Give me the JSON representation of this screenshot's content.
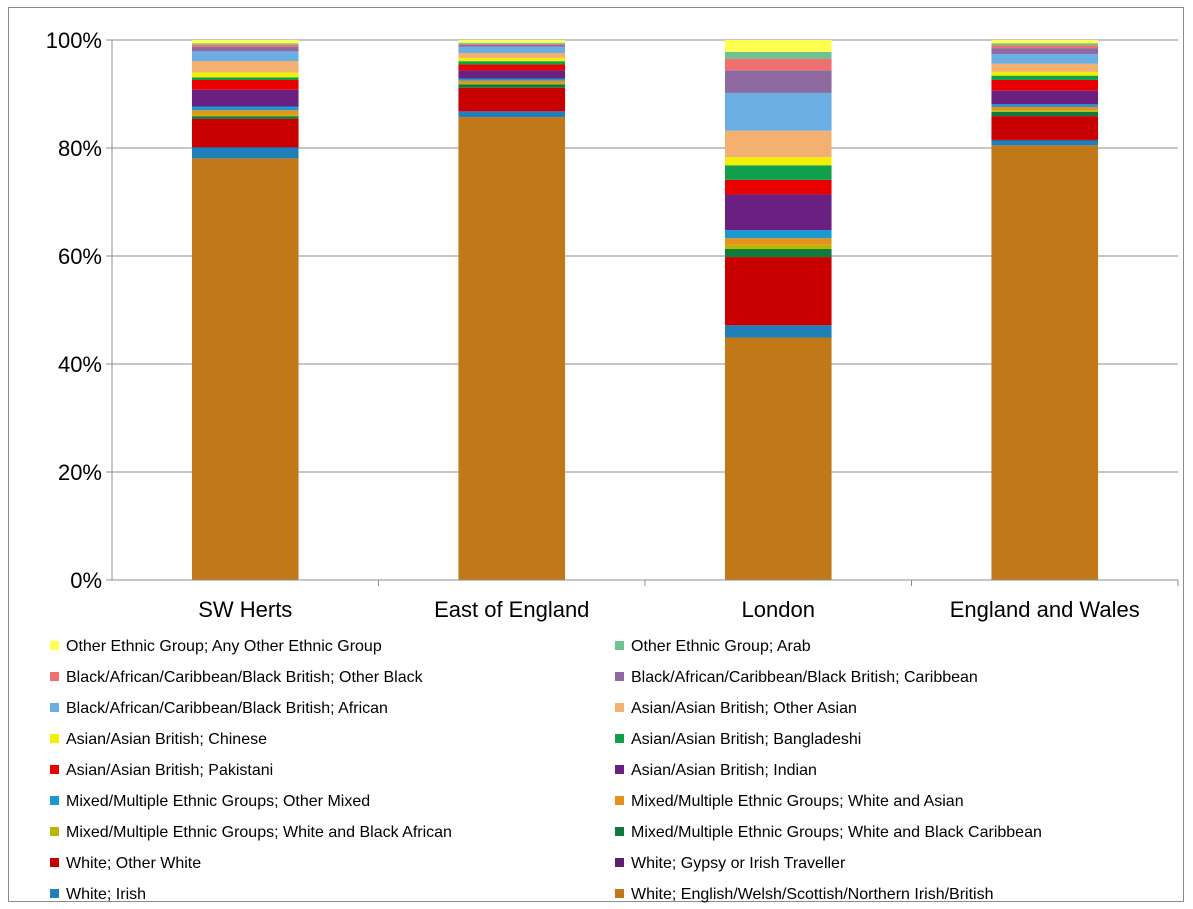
{
  "chart_data": {
    "type": "bar",
    "stacked": true,
    "percent": true,
    "title": "",
    "xlabel": "",
    "ylabel": "",
    "ylim": [
      0,
      100
    ],
    "yticks": [
      "0%",
      "20%",
      "40%",
      "60%",
      "80%",
      "100%"
    ],
    "grid": true,
    "legend_position": "bottom",
    "categories": [
      "SW Herts",
      "East of England",
      "London",
      "England and Wales"
    ],
    "series": [
      {
        "name": "White; English/Welsh/Scottish/Northern Irish/British",
        "color": "#C07818",
        "values": [
          78.0,
          85.3,
          44.9,
          80.5
        ]
      },
      {
        "name": "White; Irish",
        "color": "#1F80B8",
        "values": [
          2.0,
          1.0,
          2.2,
          0.9
        ]
      },
      {
        "name": "White; Gypsy or Irish Traveller",
        "color": "#5E1E6E",
        "values": [
          0.1,
          0.1,
          0.1,
          0.1
        ]
      },
      {
        "name": "White; Other White",
        "color": "#C80000",
        "values": [
          5.2,
          4.3,
          12.6,
          4.4
        ]
      },
      {
        "name": "Mixed/Multiple Ethnic Groups; White and Black Caribbean",
        "color": "#0F7A3C",
        "values": [
          0.5,
          0.6,
          1.5,
          0.8
        ]
      },
      {
        "name": "Mixed/Multiple Ethnic Groups; White and Black African",
        "color": "#B8B800",
        "values": [
          0.3,
          0.2,
          0.8,
          0.3
        ]
      },
      {
        "name": "Mixed/Multiple Ethnic Groups; White and Asian",
        "color": "#E8901C",
        "values": [
          0.8,
          0.5,
          1.2,
          0.6
        ]
      },
      {
        "name": "Mixed/Multiple Ethnic Groups; Other Mixed",
        "color": "#1A98D0",
        "values": [
          0.7,
          0.4,
          1.5,
          0.5
        ]
      },
      {
        "name": "Asian/Asian British; Indian",
        "color": "#6A2080",
        "values": [
          3.1,
          1.5,
          6.6,
          2.5
        ]
      },
      {
        "name": "Asian/Asian British; Pakistani",
        "color": "#E80000",
        "values": [
          1.8,
          1.1,
          2.7,
          2.0
        ]
      },
      {
        "name": "Asian/Asian British; Bangladeshi",
        "color": "#10A04C",
        "values": [
          0.5,
          0.6,
          2.7,
          0.8
        ]
      },
      {
        "name": "Asian/Asian British; Chinese",
        "color": "#F0F000",
        "values": [
          0.9,
          0.6,
          1.5,
          0.7
        ]
      },
      {
        "name": "Asian/Asian British; Other Asian",
        "color": "#F4B070",
        "values": [
          2.1,
          0.9,
          4.9,
          1.5
        ]
      },
      {
        "name": "Black/African/Caribbean/Black British; African",
        "color": "#6AAEE2",
        "values": [
          1.8,
          1.2,
          7.0,
          1.8
        ]
      },
      {
        "name": "Black/African/Caribbean/Black British; Caribbean",
        "color": "#8E6AA0",
        "values": [
          0.8,
          0.3,
          4.2,
          1.1
        ]
      },
      {
        "name": "Black/African/Caribbean/Black British; Other Black",
        "color": "#F07070",
        "values": [
          0.4,
          0.2,
          2.1,
          0.5
        ]
      },
      {
        "name": "Other Ethnic Group; Arab",
        "color": "#70C090",
        "values": [
          0.3,
          0.2,
          1.3,
          0.4
        ]
      },
      {
        "name": "Other Ethnic Group; Any Other Ethnic Group",
        "color": "#FFFF50",
        "values": [
          0.6,
          0.5,
          2.2,
          0.6
        ]
      }
    ]
  }
}
